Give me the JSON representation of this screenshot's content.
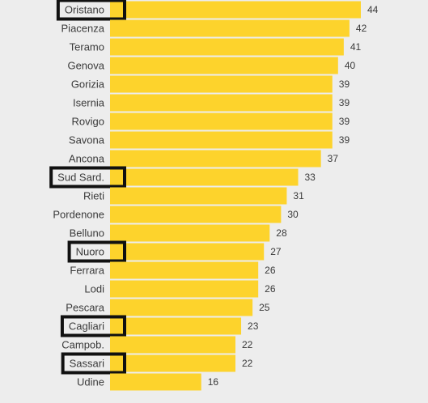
{
  "chart_data": {
    "type": "bar",
    "orientation": "horizontal",
    "title": "",
    "xlabel": "",
    "ylabel": "",
    "xlim": [
      0,
      44
    ],
    "grid": false,
    "legend": "none",
    "categories": [
      "Oristano",
      "Piacenza",
      "Teramo",
      "Genova",
      "Gorizia",
      "Isernia",
      "Rovigo",
      "Savona",
      "Ancona",
      "Sud Sard.",
      "Rieti",
      "Pordenone",
      "Belluno",
      "Nuoro",
      "Ferrara",
      "Lodi",
      "Pescara",
      "Cagliari",
      "Campob.",
      "Sassari",
      "Udine"
    ],
    "values": [
      44,
      42,
      41,
      40,
      39,
      39,
      39,
      39,
      37,
      33,
      31,
      30,
      28,
      27,
      26,
      26,
      25,
      23,
      22,
      22,
      16
    ],
    "highlighted": [
      "Oristano",
      "Sud Sard.",
      "Nuoro",
      "Cagliari",
      "Sassari"
    ],
    "colors": {
      "bar": "#fdd32c",
      "background": "#ededed",
      "text": "#3a3a3a",
      "highlight_outline": "#111111"
    }
  }
}
